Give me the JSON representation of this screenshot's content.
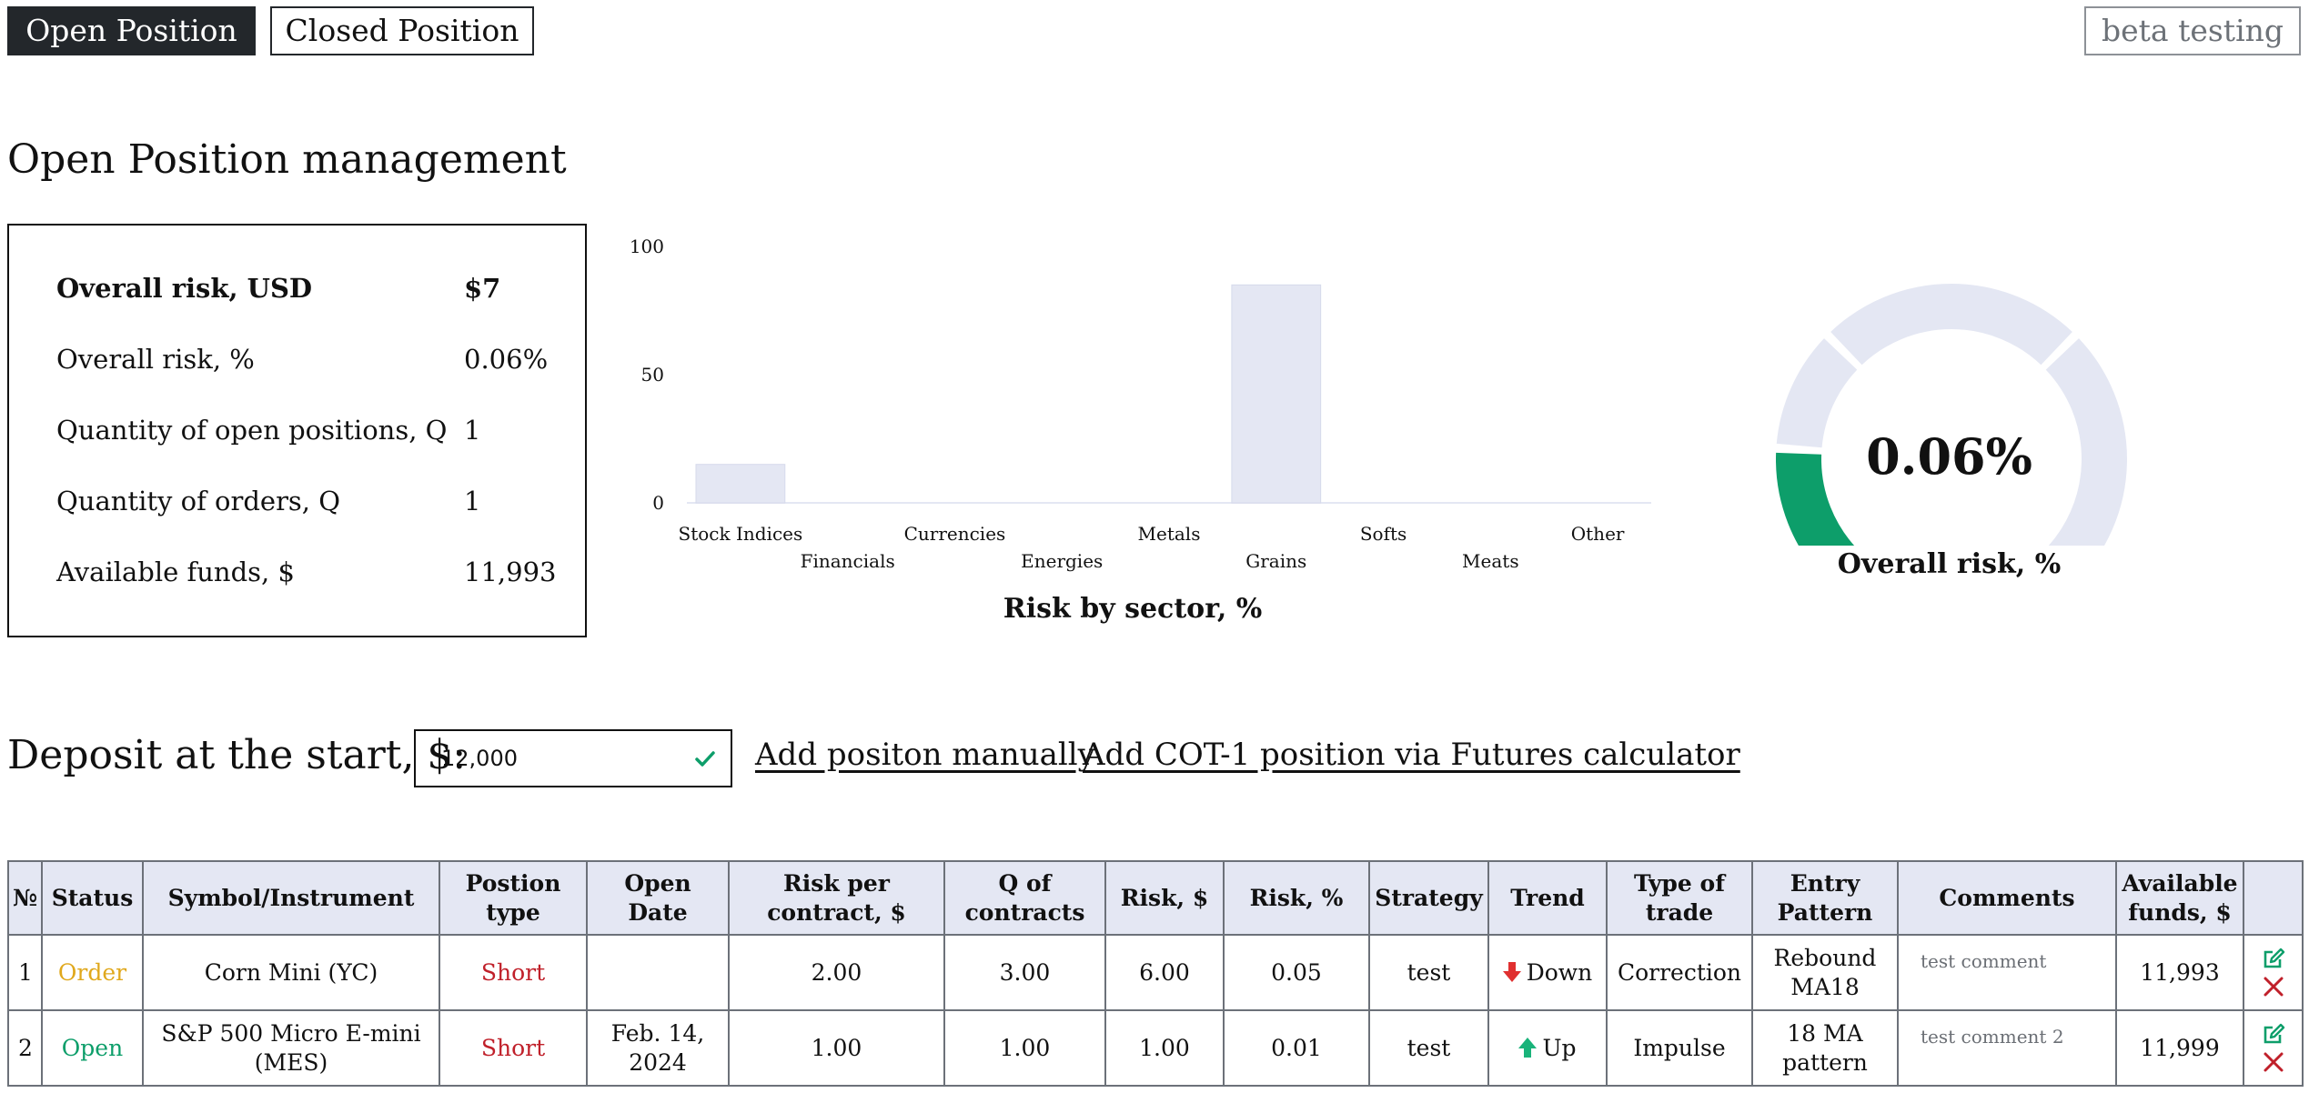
{
  "tabs": [
    {
      "label": "Open Position",
      "active": true
    },
    {
      "label": "Closed Position",
      "active": false
    }
  ],
  "beta_label": "beta testing",
  "page_title": "Open Position management",
  "summary": {
    "overall_risk_usd": {
      "label": "Overall risk, USD",
      "value": "$7"
    },
    "overall_risk_pct": {
      "label": "Overall risk, %",
      "value": "0.06%"
    },
    "open_positions": {
      "label": "Quantity of open positions, Q",
      "value": "1"
    },
    "orders": {
      "label": "Quantity of orders, Q",
      "value": "1"
    },
    "available_funds": {
      "label": "Available funds, $",
      "value": "11,993"
    }
  },
  "chart_data": {
    "type": "bar",
    "title": "Risk by sector, %",
    "categories": [
      "Stock Indices",
      "Financials",
      "Currencies",
      "Energies",
      "Metals",
      "Grains",
      "Softs",
      "Meats",
      "Other"
    ],
    "values": [
      15,
      0,
      0,
      0,
      0,
      85,
      0,
      0,
      0
    ],
    "yticks": [
      0,
      50,
      100
    ],
    "ylim": [
      0,
      100
    ],
    "bar_color": "#e4e7f3"
  },
  "gauge": {
    "value_label": "0.06%",
    "caption": "Overall risk, %",
    "fill_fraction": 0.18,
    "fill_color": "#0d9e6a",
    "track_color": "#e4e7f3"
  },
  "deposit": {
    "label": "Deposit at the start, $:",
    "value": "12,000"
  },
  "links": {
    "add_manual": "Add positon manually",
    "add_cot": "Add COT-1 position via Futures calculator"
  },
  "table": {
    "headers": {
      "num": "№",
      "status": "Status",
      "symbol": "Symbol/Instrument",
      "ptype": "Postion type",
      "open_date": "Open Date",
      "risk_per_contract": "Risk per contract, $",
      "q_contracts": "Q of contracts",
      "risk_usd": "Risk, $",
      "risk_pct": "Risk, %",
      "strategy": "Strategy",
      "trend": "Trend",
      "type_of_trade": "Type of trade",
      "entry_pattern": "Entry Pattern",
      "comments": "Comments",
      "available_funds": "Available funds, $"
    },
    "rows": [
      {
        "num": "1",
        "status": "Order",
        "symbol": "Corn Mini (YC)",
        "ptype": "Short",
        "open_date": "",
        "risk_per_contract": "2.00",
        "q_contracts": "3.00",
        "risk_usd": "6.00",
        "risk_pct": "0.05",
        "strategy": "test",
        "trend": "Down",
        "trend_icon": "arrow-down-icon",
        "type_of_trade": "Correction",
        "entry_pattern": "Rebound MA18",
        "comments": "test comment",
        "available_funds": "11,993"
      },
      {
        "num": "2",
        "status": "Open",
        "symbol": "S&P 500 Micro E-mini (MES)",
        "ptype": "Short",
        "open_date": "Feb. 14, 2024",
        "risk_per_contract": "1.00",
        "q_contracts": "1.00",
        "risk_usd": "1.00",
        "risk_pct": "0.01",
        "strategy": "test",
        "trend": "Up",
        "trend_icon": "arrow-up-icon",
        "type_of_trade": "Impulse",
        "entry_pattern": "18 MA pattern",
        "comments": "test comment 2",
        "available_funds": "11,999"
      }
    ]
  },
  "colors": {
    "dark": "#23272b",
    "order": "#e0a81c",
    "open": "#0d9e6a",
    "short": "#c0202a",
    "header_bg": "#e4e7f3",
    "edit_icon": "#0d9e6a",
    "delete_icon": "#c0202a"
  }
}
